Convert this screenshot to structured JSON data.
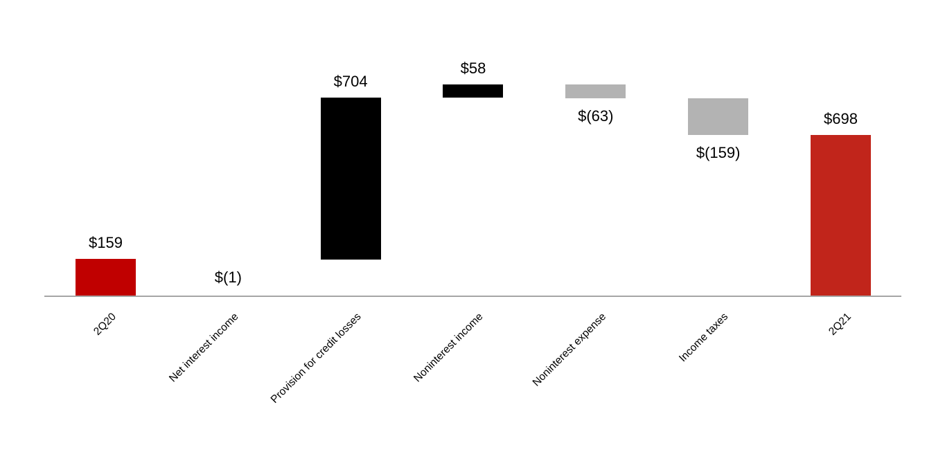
{
  "chart_data": {
    "type": "bar",
    "subtype": "waterfall",
    "title": "",
    "categories": [
      "2Q20",
      "Net interest income",
      "Provision for credit losses",
      "Noninterest income",
      "Noninterest expense",
      "Income taxes",
      "2Q21"
    ],
    "values": [
      159,
      -1,
      704,
      58,
      -63,
      -159,
      698
    ],
    "labels": [
      "$159",
      "$(1)",
      "$704",
      "$58",
      "$(63)",
      "$(159)",
      "$698"
    ],
    "roles": [
      "total",
      "delta",
      "delta",
      "delta",
      "delta",
      "delta",
      "total"
    ],
    "bar_colors": [
      "#C00000",
      "#B3B3B3",
      "#000000",
      "#000000",
      "#B3B3B3",
      "#B3B3B3",
      "#C1251B"
    ],
    "label_color": "#000000",
    "axis_line_color": "#A6A6A6",
    "background": "#FFFFFF",
    "value_axis_visible": false,
    "value_axis_range": [
      0,
      920
    ],
    "grid": false,
    "legend": false,
    "category_label_rotation_deg": -45
  }
}
